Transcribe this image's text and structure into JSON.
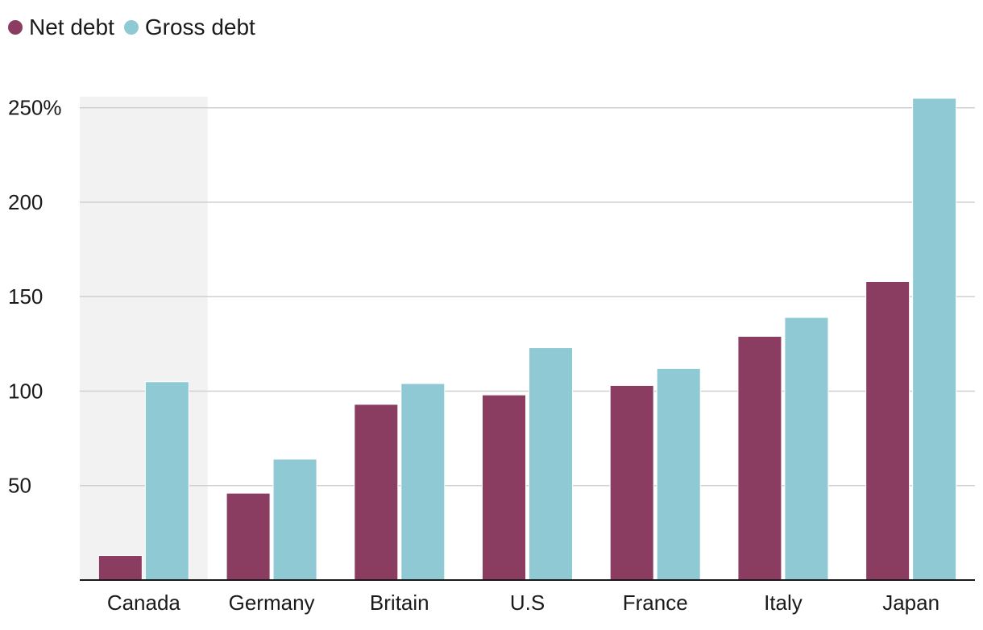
{
  "legend": {
    "net_label": "Net debt",
    "gross_label": "Gross debt"
  },
  "colors": {
    "net": "#8b3d61",
    "gross": "#8fc9d3",
    "highlight": "#f2f2f2",
    "grid": "#d0d0d0",
    "axis": "#1a1a1a"
  },
  "chart_data": {
    "type": "bar",
    "title": "",
    "xlabel": "",
    "ylabel": "",
    "ylim": [
      0,
      255
    ],
    "yticks": [
      {
        "value": 50,
        "label": "50"
      },
      {
        "value": 100,
        "label": "100"
      },
      {
        "value": 150,
        "label": "150"
      },
      {
        "value": 200,
        "label": "200"
      },
      {
        "value": 250,
        "label": "250%"
      }
    ],
    "categories": [
      "Canada",
      "Germany",
      "Britain",
      "U.S",
      "France",
      "Italy",
      "Japan"
    ],
    "highlighted_category": "Canada",
    "series": [
      {
        "name": "Net debt",
        "values": [
          13,
          46,
          93,
          98,
          103,
          129,
          158
        ]
      },
      {
        "name": "Gross debt",
        "values": [
          105,
          64,
          104,
          123,
          112,
          139,
          255
        ]
      }
    ]
  }
}
